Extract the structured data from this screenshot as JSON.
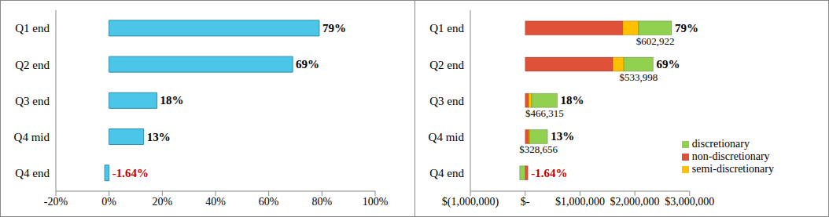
{
  "chart_data": [
    {
      "type": "bar",
      "orientation": "horizontal",
      "categories": [
        "Q1 end",
        "Q2 end",
        "Q3 end",
        "Q4 mid",
        "Q4 end"
      ],
      "values": [
        79,
        69,
        18,
        13,
        -1.64
      ],
      "value_labels": [
        "79%",
        "69%",
        "18%",
        "13%",
        "-1.64%"
      ],
      "data_labels": true,
      "color": "#4BC6E8",
      "xlim": [
        -20,
        100
      ],
      "xticks": [
        {
          "value": -20,
          "label": "-20%"
        },
        {
          "value": 0,
          "label": "0%"
        },
        {
          "value": 20,
          "label": "20%"
        },
        {
          "value": 40,
          "label": "40%"
        },
        {
          "value": 60,
          "label": "60%"
        },
        {
          "value": 80,
          "label": "80%"
        },
        {
          "value": 100,
          "label": "100%"
        }
      ]
    },
    {
      "type": "bar",
      "orientation": "horizontal",
      "stacked": true,
      "categories": [
        "Q1 end",
        "Q2 end",
        "Q3 end",
        "Q4 mid",
        "Q4 end"
      ],
      "series": [
        {
          "name": "non-discretionary",
          "color": "#E0513A",
          "values": [
            1780000,
            1600000,
            60000,
            60000,
            50000
          ]
        },
        {
          "name": "semi-discretionary",
          "color": "#FFC000",
          "values": [
            290000,
            200000,
            60000,
            20000,
            0
          ]
        },
        {
          "name": "discretionary",
          "color": "#92D050",
          "values": [
            602922,
            533998,
            466315,
            328656,
            -100000
          ],
          "value_labels": [
            "$602,922",
            "$533,998",
            "$466,315",
            "$328,656",
            null
          ],
          "data_labels": true
        }
      ],
      "annotations": [
        "79%",
        "69%",
        "18%",
        "13%",
        "-1.64%"
      ],
      "legend": "lower right",
      "xlim": [
        -1000000,
        3000000
      ],
      "xticks": [
        {
          "value": -1000000,
          "label": "$(1,000,000)"
        },
        {
          "value": 0,
          "label": "$-"
        },
        {
          "value": 1000000,
          "label": "$1,000,000"
        },
        {
          "value": 2000000,
          "label": "$2,000,000"
        },
        {
          "value": 3000000,
          "label": "$3,000,000"
        }
      ]
    }
  ]
}
